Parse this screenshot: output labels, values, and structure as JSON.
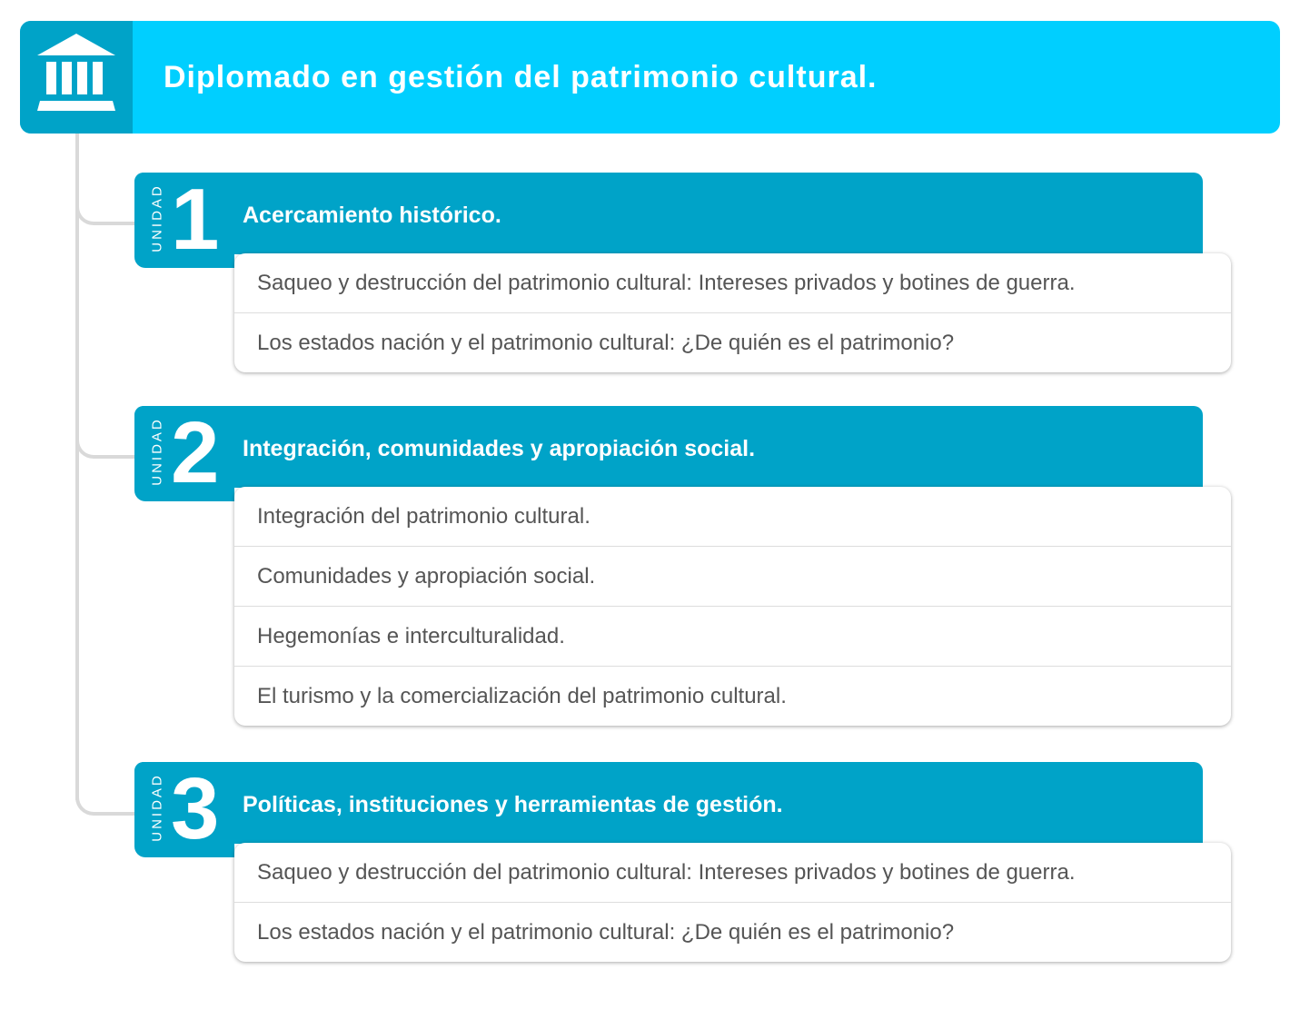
{
  "header": {
    "title": "Diplomado en gestión del patrimonio cultural.",
    "icon": "museum-icon"
  },
  "colors": {
    "header_bg": "#00cfff",
    "accent": "#00a3c8"
  },
  "units": [
    {
      "label": "UNIDAD",
      "number": "1",
      "title": "Acercamiento histórico.",
      "topics": [
        "Saqueo y destrucción del patrimonio cultural: Intereses privados y botines de guerra.",
        "Los estados nación y el patrimonio cultural: ¿De quién es el patrimonio?"
      ]
    },
    {
      "label": "UNIDAD",
      "number": "2",
      "title": "Integración, comunidades y apropiación social.",
      "topics": [
        "Integración del patrimonio cultural.",
        "Comunidades y apropiación social.",
        "Hegemonías e interculturalidad.",
        "El turismo y la comercialización del patrimonio cultural."
      ]
    },
    {
      "label": "UNIDAD",
      "number": "3",
      "title": "Políticas, instituciones y herramientas de gestión.",
      "topics": [
        "Saqueo y destrucción del patrimonio cultural: Intereses privados y botines de guerra.",
        "Los estados nación y el patrimonio cultural: ¿De quién es el patrimonio?"
      ]
    }
  ]
}
